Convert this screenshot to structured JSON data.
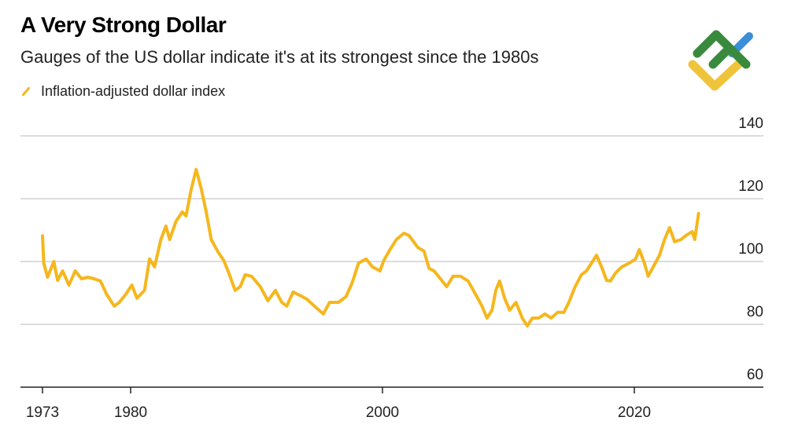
{
  "chart_data": {
    "type": "line",
    "title": "A Very Strong Dollar",
    "subtitle": "Gauges of the US dollar indicate it's at its strongest since the 1980s",
    "xlabel": "",
    "ylabel": "",
    "ylim": [
      60,
      140
    ],
    "xlim": [
      1973,
      2025.5
    ],
    "grid": true,
    "legend": "top-left",
    "y_ticks": [
      "140",
      "120",
      "100",
      "80",
      "60"
    ],
    "x_ticks": [
      "1973",
      "1980",
      "2000",
      "2020"
    ],
    "colors": {
      "series": "#f5b71d",
      "grid": "#d0d0d0",
      "axis": "#222222"
    },
    "series": [
      {
        "name": "Inflation-adjusted dollar index",
        "x": [
          1973.0,
          1973.1,
          1973.4,
          1973.9,
          1974.2,
          1974.6,
          1975.1,
          1975.6,
          1976.1,
          1976.6,
          1977.1,
          1977.6,
          1978.1,
          1978.7,
          1979.1,
          1979.6,
          1980.1,
          1980.5,
          1981.1,
          1981.5,
          1981.9,
          1982.4,
          1982.8,
          1983.1,
          1983.6,
          1984.1,
          1984.4,
          1984.8,
          1985.2,
          1985.6,
          1986.0,
          1986.4,
          1986.9,
          1987.4,
          1987.8,
          1988.3,
          1988.7,
          1989.1,
          1989.6,
          1990.3,
          1990.9,
          1991.5,
          1992.0,
          1992.4,
          1992.9,
          1993.4,
          1994.0,
          1994.6,
          1995.3,
          1995.8,
          1996.5,
          1997.1,
          1997.6,
          1998.1,
          1998.7,
          1999.2,
          1999.8,
          2000.1,
          2000.6,
          2001.1,
          2001.7,
          2002.1,
          2002.8,
          2003.3,
          2003.7,
          2004.1,
          2004.6,
          2005.1,
          2005.6,
          2006.2,
          2006.8,
          2007.4,
          2007.9,
          2008.3,
          2008.7,
          2009.0,
          2009.3,
          2009.7,
          2010.1,
          2010.6,
          2011.1,
          2011.5,
          2011.9,
          2012.4,
          2012.9,
          2013.4,
          2013.9,
          2014.4,
          2014.8,
          2015.3,
          2015.8,
          2016.2,
          2016.6,
          2017.0,
          2017.4,
          2017.8,
          2018.1,
          2018.5,
          2019.0,
          2019.6,
          2020.1,
          2020.4,
          2020.8,
          2021.1,
          2021.5,
          2022.0,
          2022.4,
          2022.8,
          2023.2,
          2023.7,
          2024.1,
          2024.6,
          2024.8,
          2025.1
        ],
        "values": [
          108.2,
          99.5,
          95,
          100,
          94,
          97,
          92.5,
          97,
          94.5,
          95,
          94.5,
          93.8,
          89.5,
          85.8,
          87,
          89.5,
          92.5,
          88.3,
          90.8,
          100.8,
          98.3,
          107,
          111.3,
          107,
          112.8,
          115.8,
          114.5,
          122.8,
          129.3,
          123.3,
          115.8,
          107,
          103.3,
          100.3,
          96.3,
          90.8,
          92,
          95.8,
          95.3,
          92,
          87.5,
          90.8,
          87,
          85.8,
          90.3,
          89.3,
          88,
          85.8,
          83.3,
          87,
          87,
          88.8,
          93.3,
          99.5,
          100.8,
          98.3,
          97,
          100.3,
          103.8,
          107,
          109,
          108.3,
          104.5,
          103.3,
          97.8,
          97,
          94.5,
          92,
          95.3,
          95.3,
          93.8,
          89.5,
          85.8,
          82,
          84.5,
          90.8,
          93.8,
          88.3,
          84.5,
          87,
          82,
          79.5,
          82,
          82,
          83.3,
          82,
          83.8,
          83.8,
          87,
          92,
          95.8,
          97,
          99.5,
          102,
          98.3,
          94,
          93.8,
          96.3,
          98.3,
          99.5,
          100.8,
          103.8,
          99.5,
          95.3,
          98.3,
          102,
          107,
          110.8,
          106.3,
          107,
          108.3,
          109.5,
          107,
          115.3
        ]
      }
    ]
  },
  "logo": {
    "icon": "chart-logo-icon",
    "colors": [
      "#3a8a3d",
      "#3b8fd9",
      "#f0c43a"
    ]
  }
}
